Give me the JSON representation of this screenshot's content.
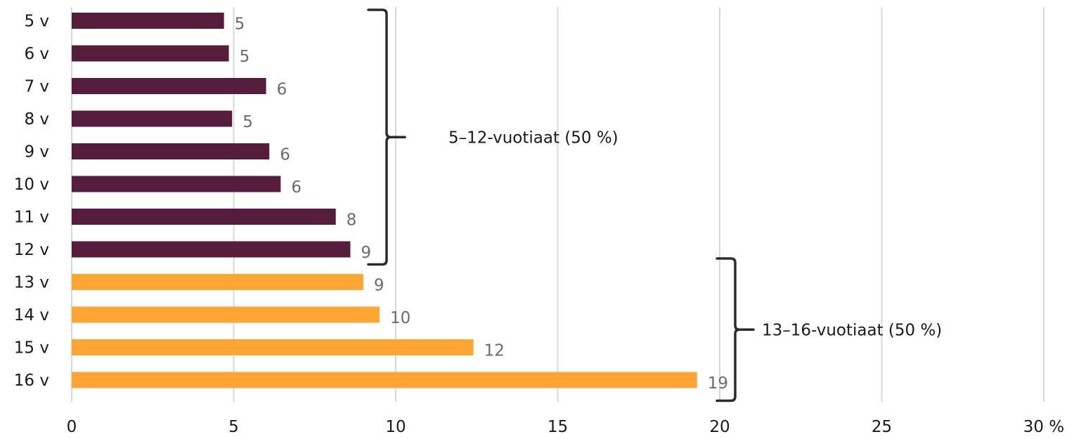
{
  "chart_data": {
    "type": "bar",
    "orientation": "horizontal",
    "categories": [
      "5 v",
      "6 v",
      "7 v",
      "8 v",
      "9 v",
      "10 v",
      "11 v",
      "12 v",
      "13 v",
      "14 v",
      "15 v",
      "16 v"
    ],
    "values": [
      4.7,
      4.85,
      6.0,
      4.95,
      6.1,
      6.45,
      8.15,
      8.6,
      9.0,
      9.5,
      12.4,
      19.3
    ],
    "value_labels": [
      "5",
      "5",
      "6",
      "5",
      "6",
      "6",
      "8",
      "9",
      "9",
      "10",
      "12",
      "19"
    ],
    "bar_colors": [
      "#561c3c",
      "#561c3c",
      "#561c3c",
      "#561c3c",
      "#561c3c",
      "#561c3c",
      "#561c3c",
      "#561c3c",
      "#ffa533",
      "#ffa533",
      "#ffa533",
      "#ffa533"
    ],
    "x_ticks": [
      "0",
      "5",
      "10",
      "15",
      "20",
      "25",
      "30 %"
    ],
    "xlim": [
      0,
      30
    ],
    "grid": true,
    "groups": [
      {
        "label": "5–12-vuotiaat (50 %)",
        "from_index": 0,
        "to_index": 7,
        "color": "#561c3c"
      },
      {
        "label": "13–16-vuotiaat (50 %)",
        "from_index": 8,
        "to_index": 11,
        "color": "#ffa533"
      }
    ]
  }
}
